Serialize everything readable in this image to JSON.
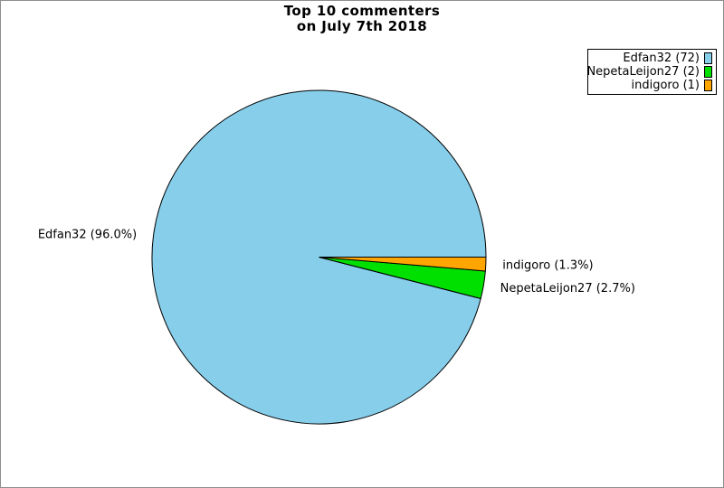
{
  "page": {
    "background": "#ffffff",
    "frame_border_color": "#8e8e8e"
  },
  "title": {
    "line1": "Top 10 commenters",
    "line2": "on July 7th 2018"
  },
  "chart_data": {
    "type": "pie",
    "title": "Top 10 commenters on July 7th 2018",
    "categories": [
      "Edfan32",
      "NepetaLeijon27",
      "indigoro"
    ],
    "values": [
      72,
      2,
      1
    ],
    "percentages": [
      96.0,
      2.7,
      1.3
    ],
    "slice_labels": [
      "Edfan32 (96.0%)",
      "NepetaLeijon27 (2.7%)",
      "indigoro (1.3%)"
    ],
    "colors": [
      "#87ceeb",
      "#00e000",
      "#ffa500"
    ],
    "outline_color": "#000000",
    "start_angle_deg": 0,
    "counterclockwise": true,
    "legend": {
      "position": "upper-right",
      "entries": [
        {
          "label": "Edfan32 (72)",
          "color": "#87ceeb"
        },
        {
          "label": "NepetaLeijon27 (2)",
          "color": "#00e000"
        },
        {
          "label": "indigoro (1)",
          "color": "#ffa500"
        }
      ]
    }
  }
}
